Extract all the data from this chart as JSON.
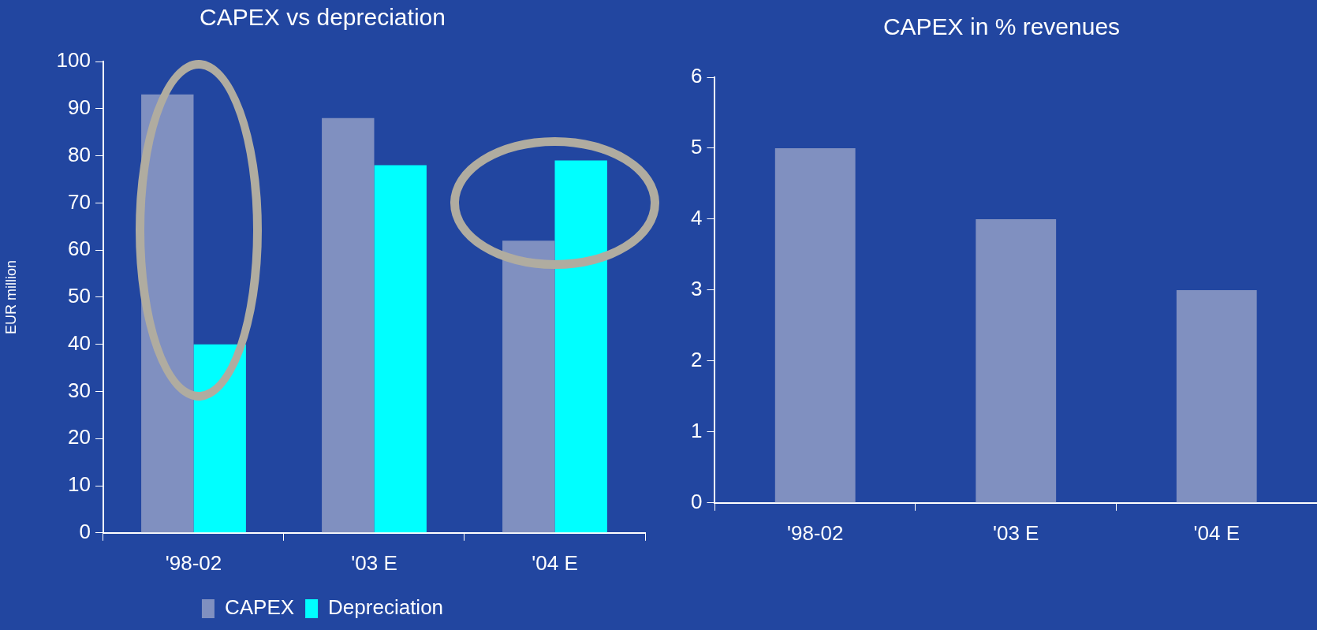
{
  "chart_data": [
    {
      "type": "bar",
      "title": "CAPEX vs depreciation",
      "ylabel": "EUR million",
      "categories": [
        "'98-02",
        "'03 E",
        "'04 E"
      ],
      "series": [
        {
          "name": "CAPEX",
          "color": "#8090c0",
          "values": [
            93,
            88,
            62
          ]
        },
        {
          "name": "Depreciation",
          "color": "#00ffff",
          "values": [
            40,
            78,
            79
          ]
        }
      ],
      "ylim": [
        0,
        100
      ],
      "yticks": [
        0,
        10,
        20,
        30,
        40,
        50,
        60,
        70,
        80,
        90,
        100
      ],
      "grid": false,
      "legend": "bottom"
    },
    {
      "type": "bar",
      "title": "CAPEX in % revenues",
      "categories": [
        "'98-02",
        "'03 E",
        "'04 E"
      ],
      "values": [
        5,
        4,
        3
      ],
      "color": "#8090c0",
      "ylim": [
        0,
        6
      ],
      "yticks": [
        0,
        1,
        2,
        3,
        4,
        5,
        6
      ],
      "grid": false
    }
  ]
}
